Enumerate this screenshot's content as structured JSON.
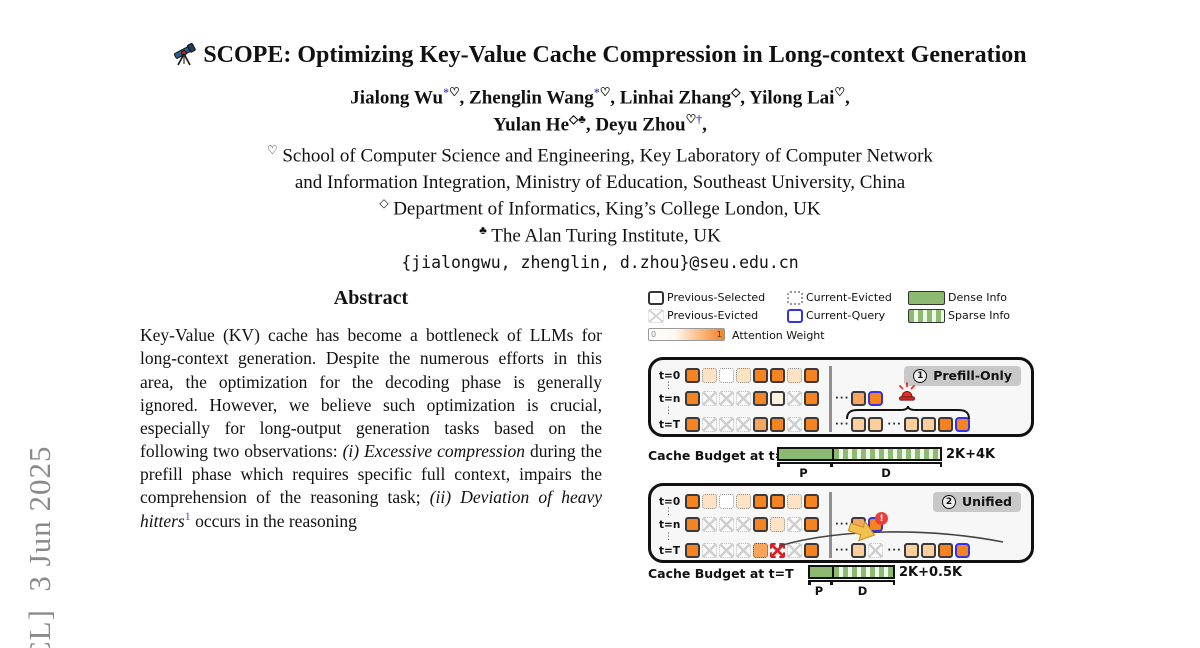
{
  "page": {
    "watermark": "CL]  3 Jun 2025"
  },
  "title": {
    "icon": "telescope-icon",
    "text": "SCOPE: Optimizing Key-Value Cache Compression in Long-context Generation"
  },
  "authors": {
    "lines": [
      [
        {
          "name": "Jialong Wu",
          "sups": [
            {
              "text": "*",
              "color": "#4d4dcf"
            },
            {
              "text": "♡"
            }
          ],
          "trail": ",  "
        },
        {
          "name": "Zhenglin Wang",
          "sups": [
            {
              "text": "*",
              "color": "#4d4dcf"
            },
            {
              "text": "♡"
            }
          ],
          "trail": ", "
        },
        {
          "name": "Linhai Zhang",
          "sups": [
            {
              "text": "◇"
            }
          ],
          "trail": ", "
        },
        {
          "name": "Yilong Lai",
          "sups": [
            {
              "text": "♡"
            }
          ],
          "trail": ","
        }
      ],
      [
        {
          "name": "Yulan He",
          "sups": [
            {
              "text": "◇"
            },
            {
              "text": "♣"
            }
          ],
          "trail": ", "
        },
        {
          "name": "Deyu Zhou",
          "sups": [
            {
              "text": "♡"
            },
            {
              "text": "†",
              "color": "#4d4dcf"
            }
          ],
          "trail": ","
        }
      ]
    ]
  },
  "affiliations": [
    {
      "marker": "♡",
      "text": "School of Computer Science and Engineering, Key Laboratory of Computer Network"
    },
    {
      "marker": "",
      "text": "and Information Integration, Ministry of Education, Southeast University, China"
    },
    {
      "marker": "◇",
      "text": "Department of Informatics, King’s College London, UK"
    },
    {
      "marker": "♣",
      "text": "The Alan Turing Institute, UK"
    }
  ],
  "email": "{jialongwu, zhenglin, d.zhou}@seu.edu.cn",
  "abstract": {
    "heading": "Abstract",
    "segments": [
      {
        "style": "normal",
        "text": "Key-Value (KV) cache has become a bottleneck of LLMs for long-context generation. Despite the numerous efforts in this area, the optimization for the decoding phase is generally ignored. However, we believe such optimization is crucial, especially for long-output generation tasks based on the following two observations: "
      },
      {
        "style": "italic",
        "text": "(i) Excessive compression"
      },
      {
        "style": "normal",
        "text": " during the prefill phase which requires specific full context, impairs the comprehension of the reasoning task; "
      },
      {
        "style": "italic",
        "text": "(ii) Deviation of heavy hitters"
      },
      {
        "style": "footnote",
        "text": "1"
      },
      {
        "style": "normal",
        "text": " occurs in the reasoning"
      }
    ]
  },
  "figure": {
    "ellipsis": "···",
    "vdots": "⋮",
    "colors": {
      "orange": "#F5831F",
      "peach": "#FBE3C4",
      "cream": "#FDF0DC",
      "medium_orange": "#F7A45C",
      "light_orange": "#FBCE9D",
      "blue_border": "#3232E8",
      "green": "#8CBA70",
      "stripe_light": "#EFF7E6",
      "badge_bg": "#C8C8C8",
      "alert_red": "#E8413C",
      "arrow_yellow": "#F2C14E"
    },
    "legend": {
      "items": [
        {
          "swatch": "previous-selected",
          "label": "Previous-Selected"
        },
        {
          "swatch": "current-evicted",
          "label": "Current-Evicted"
        },
        {
          "swatch": "dense-info",
          "label": "Dense Info"
        },
        {
          "swatch": "previous-evicted",
          "label": "Previous-Evicted"
        },
        {
          "swatch": "current-query",
          "label": "Current-Query"
        },
        {
          "swatch": "sparse-info",
          "label": "Sparse Info"
        }
      ],
      "gradient": {
        "min": "0",
        "max": "1",
        "label": "Attention Weight"
      }
    },
    "panels": [
      {
        "badge_number": "1",
        "badge_label": "Prefill-Only",
        "rows": [
          {
            "label": "t=0",
            "left": [
              "o",
              "ld",
              "wd",
              "ld",
              "o",
              "o",
              "ld",
              "o"
            ],
            "right": []
          },
          {
            "label": "t=n",
            "left": [
              "o",
              "x",
              "x",
              "x",
              "o",
              "c",
              "x",
              "o"
            ],
            "right": [
              "dots",
              "m",
              "ob"
            ]
          },
          {
            "label": "t=T",
            "left": [
              "o",
              "x",
              "x",
              "x",
              "m",
              "o",
              "x",
              "o"
            ],
            "right": [
              "dots",
              "l",
              "l",
              "dots",
              "l",
              "l",
              "o",
              "ob"
            ]
          }
        ],
        "annotations": [
          "brace",
          "siren-icon"
        ]
      },
      {
        "badge_number": "2",
        "badge_label": "Unified",
        "rows": [
          {
            "label": "t=0",
            "left": [
              "o",
              "ld",
              "wd",
              "ld",
              "o",
              "o",
              "ld",
              "o"
            ],
            "right": []
          },
          {
            "label": "t=n",
            "left": [
              "o",
              "x",
              "x",
              "x",
              "o",
              "ld",
              "x",
              "o"
            ],
            "right": [
              "dots",
              "m",
              "ob"
            ]
          },
          {
            "label": "t=T",
            "left": [
              "o",
              "x",
              "x",
              "x",
              "md",
              "rx",
              "x",
              "o"
            ],
            "right": [
              "dots",
              "l",
              "x",
              "dots",
              "l",
              "l",
              "o",
              "ob"
            ]
          }
        ],
        "annotations": [
          "eviction-curve",
          "arrow-warning-icon"
        ]
      }
    ],
    "budgets": [
      {
        "label": "Cache Budget at t=T",
        "value": "2K+4K",
        "segments": [
          {
            "key": "P"
          },
          {
            "key": "D"
          }
        ]
      },
      {
        "label": "Cache Budget at t=T",
        "value": "2K+0.5K",
        "segments": [
          {
            "key": "P"
          },
          {
            "key": "D"
          }
        ]
      }
    ]
  }
}
